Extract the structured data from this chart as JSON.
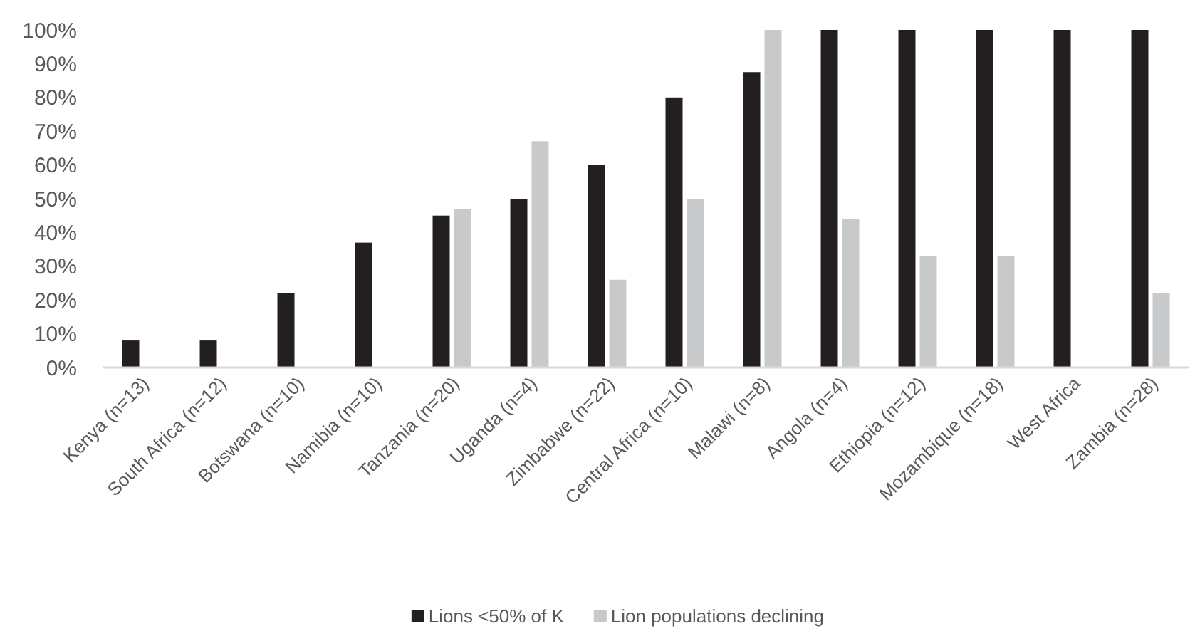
{
  "chart_data": {
    "type": "bar",
    "categories": [
      "Kenya (n=13)",
      "South Africa (n=12)",
      "Botswana (n=10)",
      "Namibia (n=10)",
      "Tanzania (n=20)",
      "Uganda (n=4)",
      "Zimbabwe (n=22)",
      "Central Africa (n=10)",
      "Malawi (n=8)",
      "Angola (n=4)",
      "Ethiopia (n=12)",
      "Mozambique (n=18)",
      "West Africa",
      "Zambia (n=28)"
    ],
    "series": [
      {
        "name": "Lions <50% of K",
        "color": "#231f20",
        "values": [
          8,
          8,
          22,
          37,
          45,
          50,
          60,
          80,
          87.5,
          100,
          100,
          100,
          100,
          100
        ]
      },
      {
        "name": "Lion populations declining",
        "color": "#c8c9cb",
        "values": [
          null,
          null,
          null,
          null,
          47,
          67,
          26,
          50,
          100,
          44,
          33,
          33,
          null,
          22
        ]
      }
    ],
    "ylim": [
      0,
      100
    ],
    "yticks": [
      {
        "value": 0,
        "label": "0%"
      },
      {
        "value": 10,
        "label": "10%"
      },
      {
        "value": 20,
        "label": "20%"
      },
      {
        "value": 30,
        "label": "30%"
      },
      {
        "value": 40,
        "label": "40%"
      },
      {
        "value": 50,
        "label": "50%"
      },
      {
        "value": 60,
        "label": "60%"
      },
      {
        "value": 70,
        "label": "70%"
      },
      {
        "value": 80,
        "label": "80%"
      },
      {
        "value": 90,
        "label": "90%"
      },
      {
        "value": 100,
        "label": "100%"
      }
    ],
    "grid": false,
    "legend": "bottom"
  }
}
